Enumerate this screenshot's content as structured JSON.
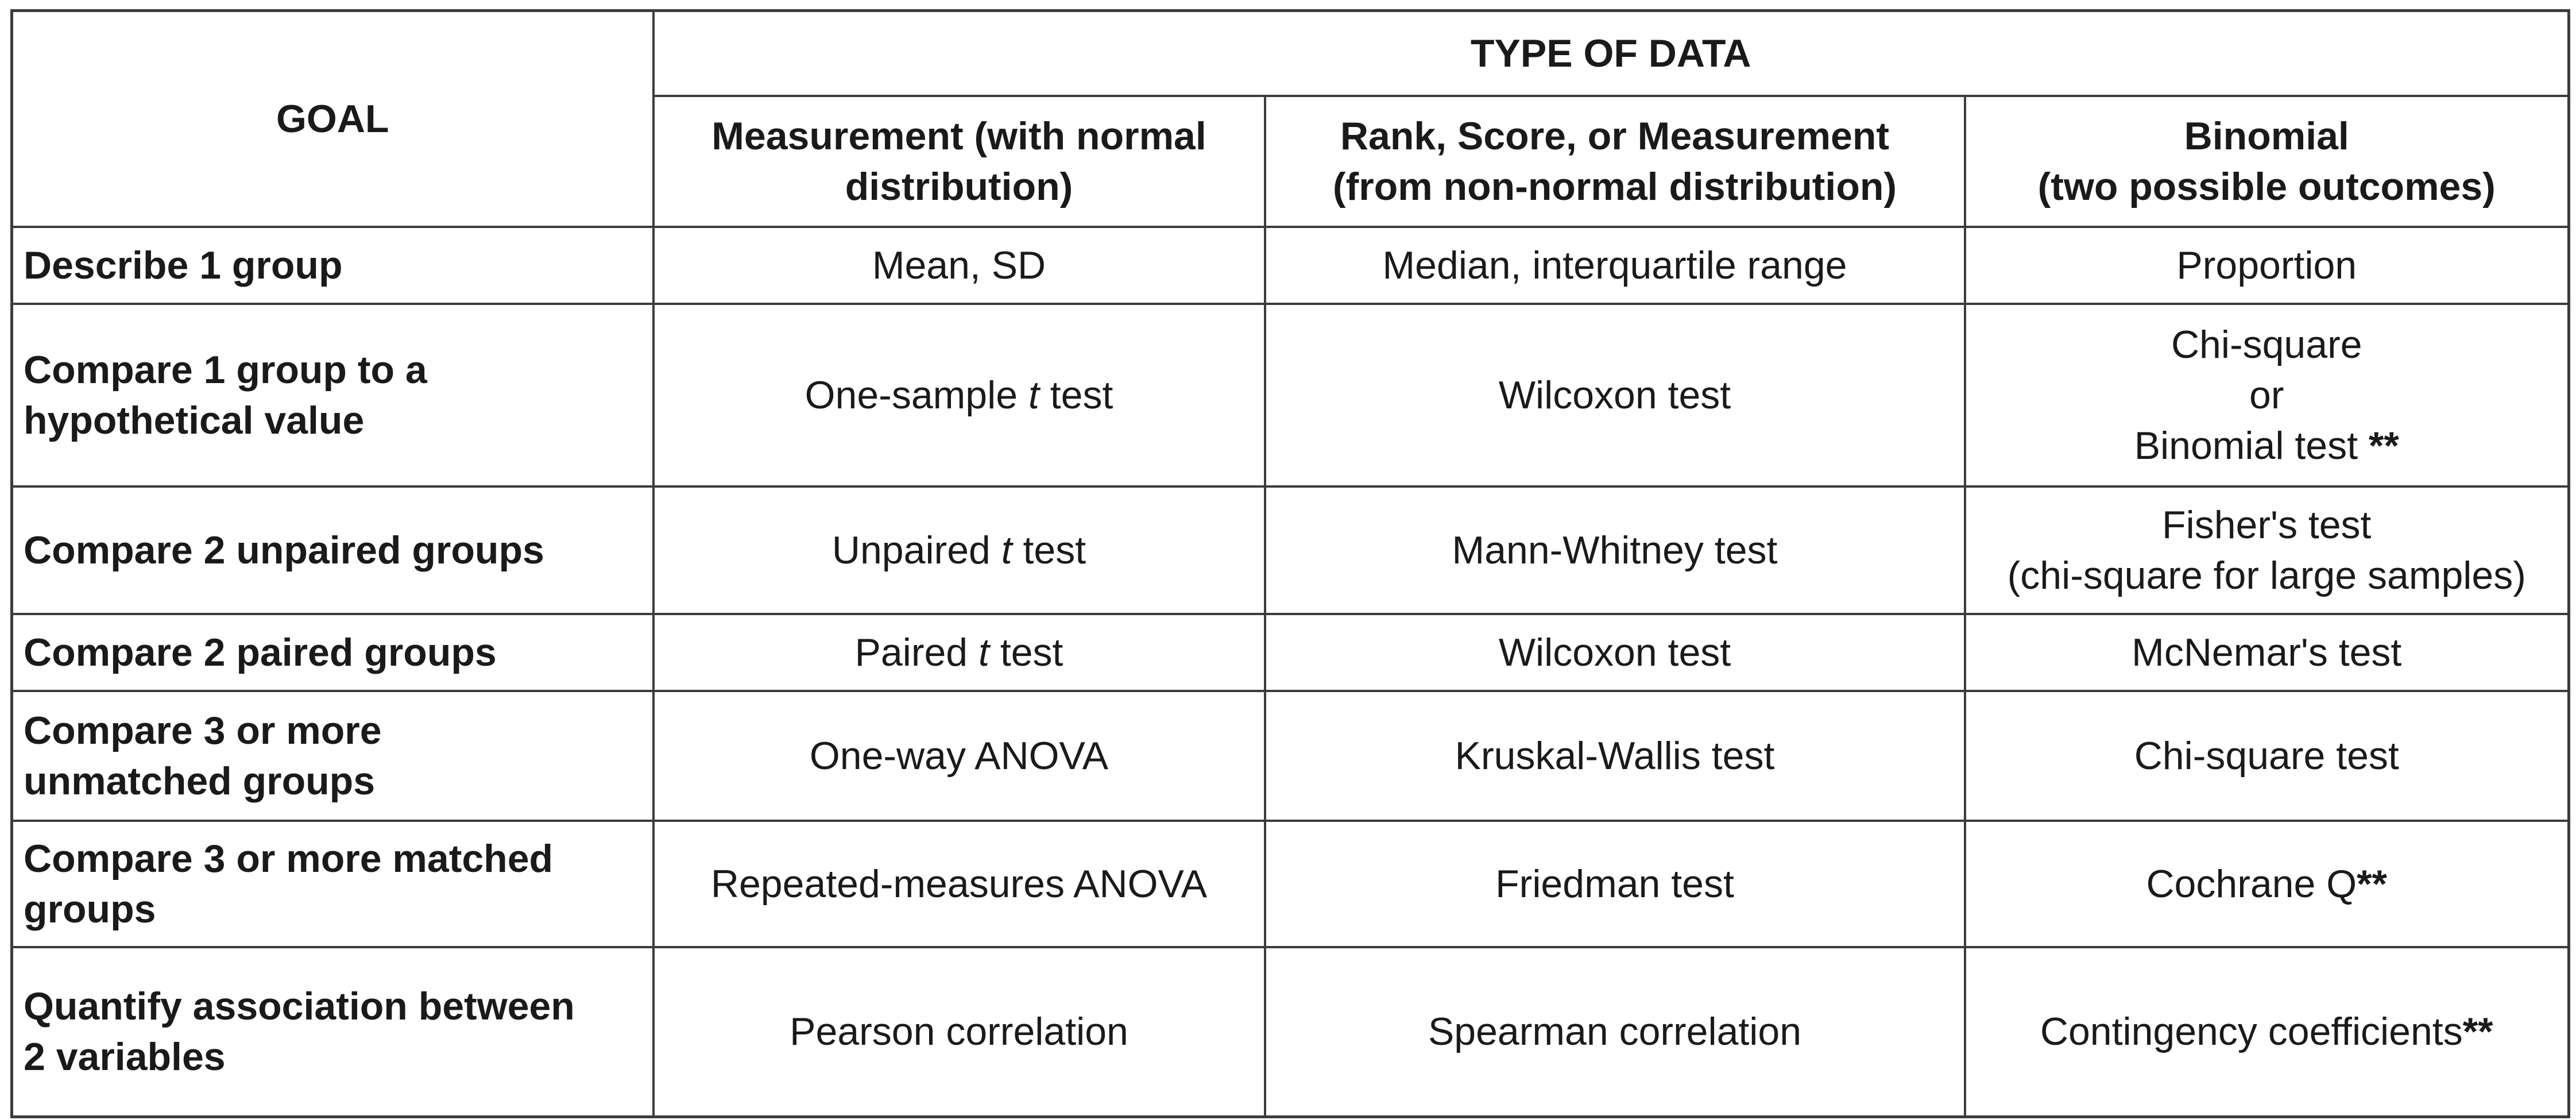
{
  "header": {
    "goal_label": "GOAL",
    "type_of_data_label": "TYPE OF DATA",
    "columns": [
      {
        "line1": "Measurement (with normal",
        "line2": "distribution)"
      },
      {
        "line1": "Rank, Score, or Measurement",
        "line2": "(from non-normal distribution)"
      },
      {
        "line1": "Binomial",
        "line2": "(two possible outcomes)"
      }
    ]
  },
  "rows": [
    {
      "goal": [
        "Describe 1 group"
      ],
      "measurement": {
        "pre": "Mean, SD",
        "var": "",
        "post": ""
      },
      "rank": "Median, interquartile range",
      "binomial": {
        "lines": [
          "Proportion"
        ],
        "stars": ""
      }
    },
    {
      "goal": [
        "Compare 1 group to a",
        "hypothetical value"
      ],
      "measurement": {
        "pre": "One-sample ",
        "var": "t",
        "post": " test"
      },
      "rank": "Wilcoxon test",
      "binomial": {
        "lines": [
          "Chi-square",
          "or",
          "Binomial test "
        ],
        "stars": "**"
      }
    },
    {
      "goal": [
        "Compare 2 unpaired groups"
      ],
      "measurement": {
        "pre": "Unpaired ",
        "var": "t",
        "post": " test"
      },
      "rank": "Mann-Whitney test",
      "binomial": {
        "lines": [
          "Fisher's test",
          "(chi-square for large samples)"
        ],
        "stars": ""
      }
    },
    {
      "goal": [
        "Compare 2 paired groups"
      ],
      "measurement": {
        "pre": "Paired ",
        "var": "t",
        "post": " test"
      },
      "rank": "Wilcoxon test",
      "binomial": {
        "lines": [
          "McNemar's test"
        ],
        "stars": ""
      }
    },
    {
      "goal": [
        "Compare 3 or more",
        "unmatched groups"
      ],
      "measurement": {
        "pre": "One-way ANOVA",
        "var": "",
        "post": ""
      },
      "rank": "Kruskal-Wallis test",
      "binomial": {
        "lines": [
          "Chi-square test"
        ],
        "stars": ""
      }
    },
    {
      "goal": [
        "Compare 3 or more matched",
        "groups"
      ],
      "measurement": {
        "pre": "Repeated-measures ANOVA",
        "var": "",
        "post": ""
      },
      "rank": "Friedman test",
      "binomial": {
        "lines": [
          "Cochrane Q"
        ],
        "stars": "**"
      }
    },
    {
      "goal": [
        "Quantify association between",
        "2 variables"
      ],
      "measurement": {
        "pre": "Pearson correlation",
        "var": "",
        "post": ""
      },
      "rank": "Spearman correlation",
      "binomial": {
        "lines": [
          "Contingency coefficients"
        ],
        "stars": "**"
      }
    }
  ]
}
